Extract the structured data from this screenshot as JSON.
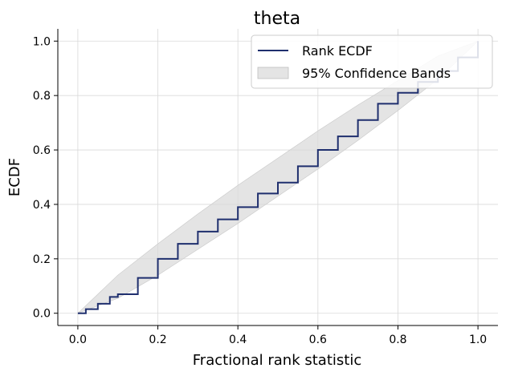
{
  "chart_data": {
    "type": "line",
    "title": "theta",
    "xlabel": "Fractional rank statistic",
    "ylabel": "ECDF",
    "xlim": [
      -0.05,
      1.05
    ],
    "ylim": [
      -0.045,
      1.045
    ],
    "xticks": [
      0.0,
      0.2,
      0.4,
      0.6,
      0.8,
      1.0
    ],
    "yticks": [
      0.0,
      0.2,
      0.4,
      0.6,
      0.8,
      1.0
    ],
    "xtick_labels": [
      "0.0",
      "0.2",
      "0.4",
      "0.6",
      "0.8",
      "1.0"
    ],
    "ytick_labels": [
      "0.0",
      "0.2",
      "0.4",
      "0.6",
      "0.8",
      "1.0"
    ],
    "grid": true,
    "legend_position": "top-right",
    "legend": [
      "Rank ECDF",
      "95% Confidence Bands"
    ],
    "series": [
      {
        "name": "Rank ECDF",
        "color": "#1f2f6e",
        "x": [
          0.0,
          0.02,
          0.05,
          0.08,
          0.1,
          0.15,
          0.2,
          0.25,
          0.3,
          0.35,
          0.4,
          0.45,
          0.5,
          0.55,
          0.6,
          0.65,
          0.7,
          0.75,
          0.8,
          0.85,
          0.9,
          0.95,
          1.0
        ],
        "y": [
          0.0,
          0.015,
          0.035,
          0.06,
          0.07,
          0.13,
          0.2,
          0.255,
          0.3,
          0.345,
          0.39,
          0.44,
          0.48,
          0.54,
          0.6,
          0.65,
          0.71,
          0.77,
          0.81,
          0.85,
          0.89,
          0.94,
          1.0
        ]
      }
    ],
    "band": {
      "name": "95% Confidence Bands",
      "color": "#d9d9d9",
      "x": [
        0.0,
        0.1,
        0.2,
        0.3,
        0.4,
        0.5,
        0.6,
        0.7,
        0.8,
        0.9,
        1.0
      ],
      "lower": [
        0.0,
        0.055,
        0.14,
        0.235,
        0.33,
        0.43,
        0.53,
        0.635,
        0.745,
        0.86,
        1.0
      ],
      "upper": [
        0.0,
        0.14,
        0.255,
        0.365,
        0.47,
        0.57,
        0.67,
        0.765,
        0.855,
        0.945,
        1.0
      ]
    }
  }
}
